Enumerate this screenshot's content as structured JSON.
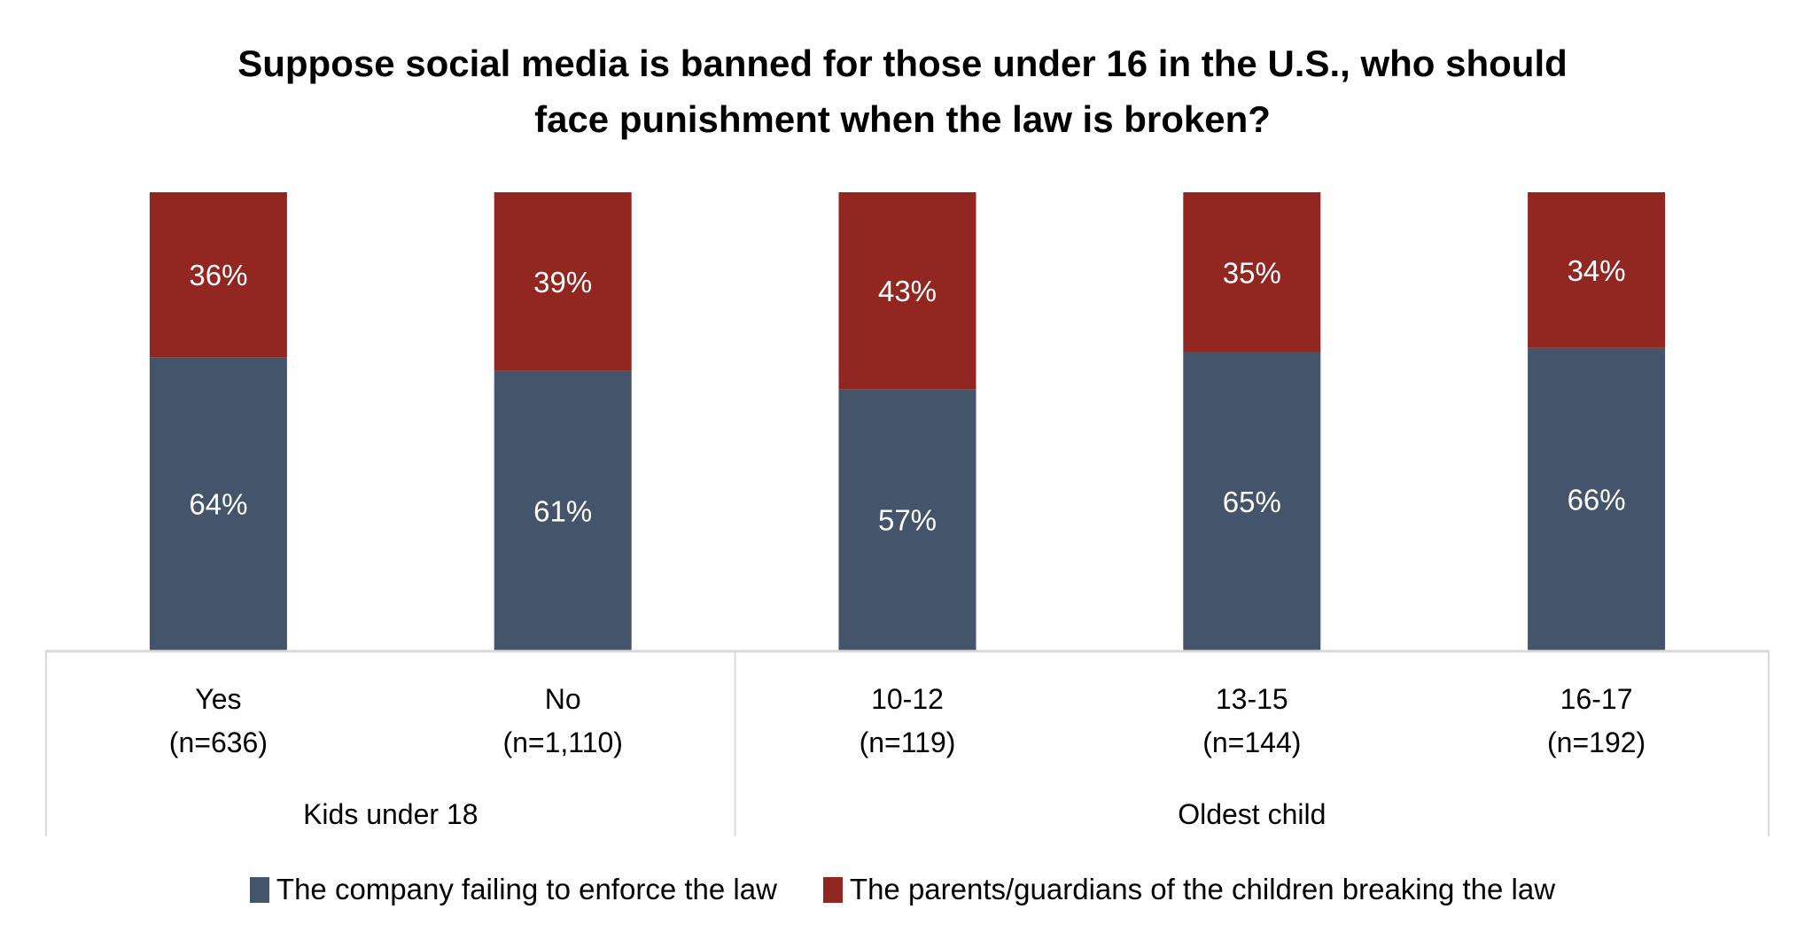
{
  "chart_data": {
    "type": "bar",
    "stacked": true,
    "title": "Suppose social media is banned for those under 16 in the U.S., who should face punishment when the law is broken?",
    "title_lines": [
      "Suppose social media is banned for those under 16 in the U.S., who should",
      "face punishment when the law is broken?"
    ],
    "xlabel": "",
    "ylabel": "",
    "ylim": [
      0,
      100
    ],
    "grid": false,
    "categories": [
      "Yes",
      "No",
      "10-12",
      "13-15",
      "16-17"
    ],
    "category_sublabels": [
      "(n=636)",
      "(n=1,110)",
      "(n=119)",
      "(n=144)",
      "(n=192)"
    ],
    "groups": [
      {
        "label": "Kids under 18",
        "categories": [
          "Yes",
          "No"
        ]
      },
      {
        "label": "Oldest child",
        "categories": [
          "10-12",
          "13-15",
          "16-17"
        ]
      }
    ],
    "series": [
      {
        "name": "The company failing to enforce the law",
        "color": "#44546A",
        "values": [
          64,
          61,
          57,
          65,
          66
        ],
        "labels": [
          "64%",
          "61%",
          "57%",
          "65%",
          "66%"
        ]
      },
      {
        "name": "The parents/guardians of the children breaking the law",
        "color": "#922722",
        "values": [
          36,
          39,
          43,
          35,
          34
        ],
        "labels": [
          "36%",
          "39%",
          "43%",
          "35%",
          "34%"
        ]
      }
    ],
    "legend_position": "bottom"
  }
}
